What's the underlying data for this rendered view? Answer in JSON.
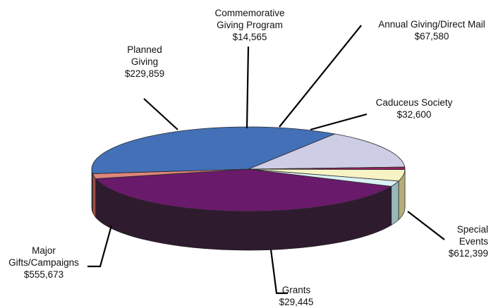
{
  "chart_data": {
    "type": "pie",
    "style": "3d",
    "slices": [
      {
        "label_lines": [
          "Special",
          "Events"
        ],
        "value_text": "$612,399",
        "value": 612399,
        "color": "#6a1a6b",
        "side_color": "#2e1b2e"
      },
      {
        "label_lines": [
          "Grants"
        ],
        "value_text": "$29,445",
        "value": 29445,
        "color": "#e0867a",
        "side_color": "#a24e3e"
      },
      {
        "label_lines": [
          "Major",
          "Gifts/Campaigns"
        ],
        "value_text": "$555,673",
        "value": 555673,
        "color": "#4370b6",
        "side_color": "#243a66"
      },
      {
        "label_lines": [
          "Planned",
          "Giving"
        ],
        "value_text": "$229,859",
        "value": 229859,
        "color": "#cdcde6",
        "side_color": "#8a8aa6"
      },
      {
        "label_lines": [
          "Commemorative",
          "Giving Program"
        ],
        "value_text": "$14,565",
        "value": 14565,
        "color": "#9c1e63",
        "side_color": "#5a1038"
      },
      {
        "label_lines": [
          "Annual Giving/Direct Mail"
        ],
        "value_text": "$67,580",
        "value": 67580,
        "color": "#f7f3c4",
        "side_color": "#b3ad7a"
      },
      {
        "label_lines": [
          "Caduceus Society"
        ],
        "value_text": "$32,600",
        "value": 32600,
        "color": "#d9f1f4",
        "side_color": "#98b8bc"
      }
    ],
    "title": "",
    "legend": "none"
  }
}
